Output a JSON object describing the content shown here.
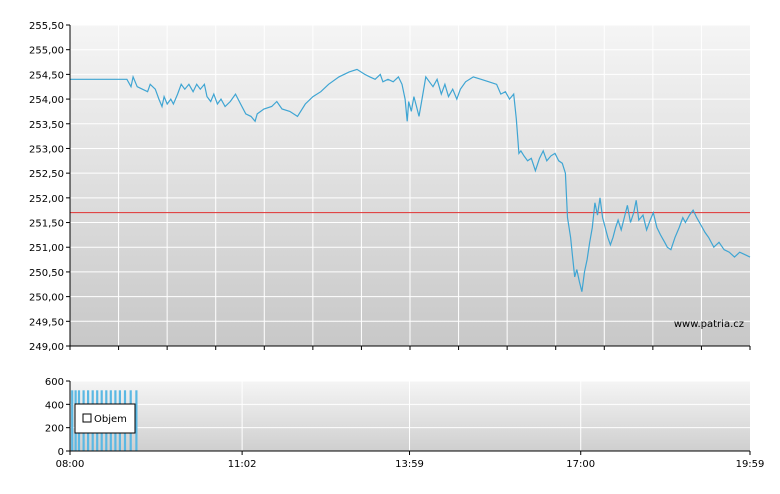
{
  "watermark": "www.patria.cz",
  "price_chart": {
    "type": "line",
    "ylim": [
      249.0,
      255.5
    ],
    "yticks": [
      "255,50",
      "255,00",
      "254,50",
      "254,00",
      "253,50",
      "253,00",
      "252,50",
      "252,00",
      "251,50",
      "251,00",
      "250,50",
      "250,00",
      "249,50",
      "249,00"
    ],
    "x_range_hours": [
      8.0,
      19.983
    ],
    "reference_line": 251.7,
    "colors": {
      "line": "#3fa5d3",
      "reference": "#e03030",
      "grid": "#ffffff"
    },
    "points": [
      [
        8.0,
        254.4
      ],
      [
        8.4,
        254.4
      ],
      [
        8.8,
        254.4
      ],
      [
        9.1,
        254.4
      ],
      [
        9.18,
        254.25
      ],
      [
        9.22,
        254.45
      ],
      [
        9.3,
        254.25
      ],
      [
        9.4,
        254.2
      ],
      [
        9.5,
        254.15
      ],
      [
        9.55,
        254.3
      ],
      [
        9.65,
        254.2
      ],
      [
        9.72,
        254.0
      ],
      [
        9.78,
        253.85
      ],
      [
        9.82,
        254.05
      ],
      [
        9.88,
        253.9
      ],
      [
        9.95,
        254.0
      ],
      [
        10.0,
        253.9
      ],
      [
        10.08,
        254.1
      ],
      [
        10.15,
        254.3
      ],
      [
        10.22,
        254.2
      ],
      [
        10.3,
        254.3
      ],
      [
        10.38,
        254.15
      ],
      [
        10.45,
        254.3
      ],
      [
        10.52,
        254.2
      ],
      [
        10.6,
        254.3
      ],
      [
        10.65,
        254.05
      ],
      [
        10.72,
        253.95
      ],
      [
        10.78,
        254.1
      ],
      [
        10.85,
        253.9
      ],
      [
        10.92,
        254.0
      ],
      [
        11.0,
        253.85
      ],
      [
        11.1,
        253.95
      ],
      [
        11.2,
        254.1
      ],
      [
        11.3,
        253.9
      ],
      [
        11.4,
        253.7
      ],
      [
        11.5,
        253.65
      ],
      [
        11.58,
        253.55
      ],
      [
        11.62,
        253.7
      ],
      [
        11.75,
        253.8
      ],
      [
        11.9,
        253.85
      ],
      [
        12.0,
        253.95
      ],
      [
        12.1,
        253.8
      ],
      [
        12.25,
        253.75
      ],
      [
        12.4,
        253.65
      ],
      [
        12.55,
        253.9
      ],
      [
        12.7,
        254.05
      ],
      [
        12.85,
        254.15
      ],
      [
        13.0,
        254.3
      ],
      [
        13.2,
        254.45
      ],
      [
        13.4,
        254.55
      ],
      [
        13.55,
        254.6
      ],
      [
        13.7,
        254.5
      ],
      [
        13.8,
        254.45
      ],
      [
        13.9,
        254.4
      ],
      [
        14.0,
        254.5
      ],
      [
        14.05,
        254.35
      ],
      [
        14.15,
        254.4
      ],
      [
        14.25,
        254.35
      ],
      [
        14.35,
        254.45
      ],
      [
        14.42,
        254.3
      ],
      [
        14.48,
        254.0
      ],
      [
        14.52,
        253.55
      ],
      [
        14.55,
        253.95
      ],
      [
        14.6,
        253.75
      ],
      [
        14.65,
        254.05
      ],
      [
        14.7,
        253.85
      ],
      [
        14.75,
        253.65
      ],
      [
        14.8,
        253.95
      ],
      [
        14.88,
        254.45
      ],
      [
        14.95,
        254.35
      ],
      [
        15.02,
        254.25
      ],
      [
        15.1,
        254.4
      ],
      [
        15.18,
        254.1
      ],
      [
        15.25,
        254.3
      ],
      [
        15.32,
        254.05
      ],
      [
        15.4,
        254.2
      ],
      [
        15.48,
        254.0
      ],
      [
        15.55,
        254.2
      ],
      [
        15.65,
        254.35
      ],
      [
        15.8,
        254.45
      ],
      [
        15.95,
        254.4
      ],
      [
        16.1,
        254.35
      ],
      [
        16.25,
        254.3
      ],
      [
        16.33,
        254.1
      ],
      [
        16.42,
        254.15
      ],
      [
        16.5,
        254.0
      ],
      [
        16.58,
        254.1
      ],
      [
        16.63,
        253.6
      ],
      [
        16.66,
        253.2
      ],
      [
        16.68,
        252.9
      ],
      [
        16.72,
        252.95
      ],
      [
        16.78,
        252.85
      ],
      [
        16.85,
        252.75
      ],
      [
        16.92,
        252.8
      ],
      [
        17.0,
        252.55
      ],
      [
        17.08,
        252.8
      ],
      [
        17.15,
        252.95
      ],
      [
        17.22,
        252.75
      ],
      [
        17.3,
        252.85
      ],
      [
        17.38,
        252.9
      ],
      [
        17.45,
        252.75
      ],
      [
        17.52,
        252.7
      ],
      [
        17.58,
        252.5
      ],
      [
        17.62,
        251.6
      ],
      [
        17.68,
        251.2
      ],
      [
        17.72,
        250.8
      ],
      [
        17.76,
        250.4
      ],
      [
        17.8,
        250.55
      ],
      [
        17.85,
        250.3
      ],
      [
        17.9,
        250.1
      ],
      [
        17.95,
        250.5
      ],
      [
        18.0,
        250.75
      ],
      [
        18.05,
        251.1
      ],
      [
        18.1,
        251.4
      ],
      [
        18.15,
        251.9
      ],
      [
        18.2,
        251.65
      ],
      [
        18.25,
        252.0
      ],
      [
        18.3,
        251.6
      ],
      [
        18.35,
        251.4
      ],
      [
        18.4,
        251.2
      ],
      [
        18.45,
        251.05
      ],
      [
        18.5,
        251.2
      ],
      [
        18.55,
        251.4
      ],
      [
        18.6,
        251.55
      ],
      [
        18.66,
        251.35
      ],
      [
        18.72,
        251.6
      ],
      [
        18.78,
        251.85
      ],
      [
        18.84,
        251.5
      ],
      [
        18.9,
        251.7
      ],
      [
        18.95,
        251.95
      ],
      [
        19.0,
        251.55
      ],
      [
        19.08,
        251.65
      ],
      [
        19.15,
        251.35
      ],
      [
        19.22,
        251.55
      ],
      [
        19.28,
        251.7
      ],
      [
        19.35,
        251.4
      ],
      [
        19.42,
        251.25
      ],
      [
        19.5,
        251.1
      ],
      [
        19.55,
        251.0
      ],
      [
        19.62,
        250.95
      ],
      [
        19.7,
        251.2
      ],
      [
        19.78,
        251.4
      ],
      [
        19.85,
        251.6
      ],
      [
        19.9,
        251.5
      ],
      [
        19.98,
        251.65
      ],
      [
        20.05,
        251.75
      ],
      [
        20.12,
        251.6
      ],
      [
        20.2,
        251.45
      ],
      [
        20.28,
        251.3
      ],
      [
        20.35,
        251.2
      ],
      [
        20.45,
        251.0
      ],
      [
        20.55,
        251.1
      ],
      [
        20.65,
        250.95
      ],
      [
        20.75,
        250.9
      ],
      [
        20.85,
        250.8
      ],
      [
        20.95,
        250.9
      ],
      [
        21.05,
        250.85
      ],
      [
        21.15,
        250.8
      ]
    ]
  },
  "volume_chart": {
    "type": "bar",
    "ylim": [
      0,
      600
    ],
    "yticks": [
      "600",
      "400",
      "200",
      "0"
    ],
    "legend": "Objem",
    "bar_color": "#5bb8e3",
    "bars": [
      [
        8.02,
        520
      ],
      [
        8.08,
        520
      ],
      [
        8.14,
        520
      ],
      [
        8.22,
        520
      ],
      [
        8.3,
        520
      ],
      [
        8.38,
        520
      ],
      [
        8.46,
        520
      ],
      [
        8.54,
        520
      ],
      [
        8.62,
        520
      ],
      [
        8.7,
        520
      ],
      [
        8.78,
        520
      ],
      [
        8.86,
        520
      ],
      [
        8.95,
        520
      ],
      [
        9.05,
        520
      ],
      [
        9.15,
        520
      ]
    ]
  },
  "x_axis": {
    "ticks": [
      {
        "label": "08:00",
        "hour": 8.0
      },
      {
        "label": "11:02",
        "hour": 11.033
      },
      {
        "label": "13:59",
        "hour": 13.983
      },
      {
        "label": "17:00",
        "hour": 17.0
      },
      {
        "label": "19:59",
        "hour": 19.983
      }
    ]
  }
}
